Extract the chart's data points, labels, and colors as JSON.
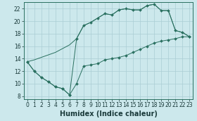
{
  "xlabel": "Humidex (Indice chaleur)",
  "bg_color": "#cce8ec",
  "grid_color": "#aacdd4",
  "line_color": "#2a7060",
  "xlim": [
    -0.5,
    23.5
  ],
  "ylim": [
    7.5,
    23.0
  ],
  "xticks": [
    0,
    1,
    2,
    3,
    4,
    5,
    6,
    7,
    8,
    9,
    10,
    11,
    12,
    13,
    14,
    15,
    16,
    17,
    18,
    19,
    20,
    21,
    22,
    23
  ],
  "yticks": [
    8,
    10,
    12,
    14,
    16,
    18,
    20,
    22
  ],
  "line_a_x": [
    0,
    1,
    2,
    3,
    4,
    5,
    6,
    7,
    8,
    9,
    10,
    11,
    12,
    13,
    14,
    15,
    16,
    17,
    18,
    19,
    20,
    21,
    22,
    23
  ],
  "line_a_y": [
    13.5,
    12.0,
    11.0,
    10.3,
    9.5,
    9.2,
    8.2,
    10.0,
    12.8,
    13.0,
    13.2,
    13.8,
    14.0,
    14.2,
    14.5,
    15.0,
    15.5,
    16.0,
    16.5,
    16.8,
    17.0,
    17.2,
    17.5,
    17.5
  ],
  "line_b_x": [
    0,
    1,
    2,
    3,
    4,
    5,
    6,
    7,
    8,
    9,
    10,
    11,
    12,
    13,
    14,
    15,
    16,
    17,
    18,
    19,
    20,
    21,
    22,
    23
  ],
  "line_b_y": [
    13.5,
    12.0,
    11.0,
    10.3,
    9.5,
    9.2,
    8.2,
    17.2,
    19.3,
    19.8,
    20.5,
    21.2,
    21.0,
    21.8,
    22.0,
    21.8,
    21.8,
    22.5,
    22.7,
    21.7,
    21.7,
    18.5,
    18.2,
    17.5
  ],
  "line_c_x": [
    0,
    1,
    2,
    3,
    4,
    5,
    6,
    7,
    8,
    9,
    10,
    11,
    12,
    13,
    14,
    15,
    16,
    17,
    18,
    19,
    20,
    21,
    22,
    23
  ],
  "line_c_y": [
    13.5,
    13.8,
    14.2,
    14.6,
    15.0,
    15.6,
    16.2,
    17.2,
    19.3,
    19.8,
    20.5,
    21.2,
    21.0,
    21.8,
    22.0,
    21.8,
    21.8,
    22.5,
    22.7,
    21.7,
    21.7,
    18.5,
    18.2,
    17.5
  ],
  "xlabel_fontsize": 7,
  "tick_fontsize": 5.5
}
